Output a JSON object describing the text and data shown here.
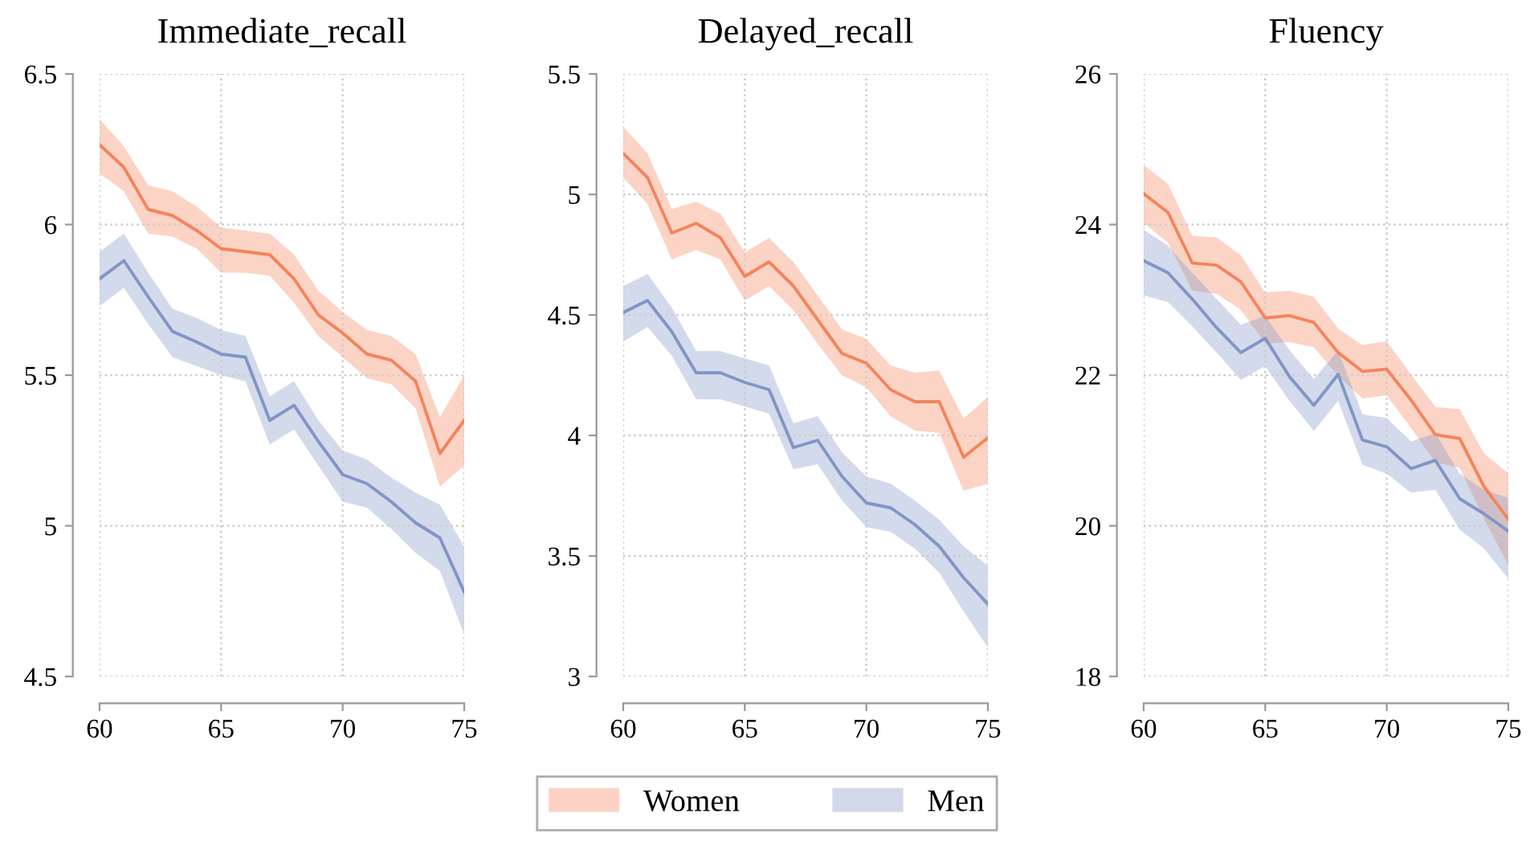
{
  "chart_data": [
    {
      "type": "line",
      "title": "Immediate_recall",
      "x": [
        60,
        61,
        62,
        63,
        64,
        65,
        66,
        67,
        68,
        69,
        70,
        71,
        72,
        73,
        74,
        75
      ],
      "xlim": [
        60,
        75
      ],
      "xticks": [
        60,
        65,
        70,
        75
      ],
      "ylim": [
        4.5,
        6.5
      ],
      "yticks": [
        4.5,
        5,
        5.5,
        6,
        6.5
      ],
      "grid": true,
      "legend": "bottom",
      "series": [
        {
          "name": "Women",
          "color": "#f4845c",
          "values": [
            6.265,
            6.19,
            6.05,
            6.03,
            5.98,
            5.92,
            5.91,
            5.9,
            5.82,
            5.7,
            5.64,
            5.57,
            5.55,
            5.48,
            5.24,
            5.35
          ],
          "lower": [
            6.17,
            6.11,
            5.97,
            5.96,
            5.92,
            5.84,
            5.84,
            5.83,
            5.74,
            5.63,
            5.56,
            5.49,
            5.47,
            5.39,
            5.13,
            5.2
          ],
          "upper": [
            6.35,
            6.26,
            6.13,
            6.11,
            6.06,
            5.99,
            5.98,
            5.97,
            5.9,
            5.78,
            5.71,
            5.65,
            5.63,
            5.57,
            5.36,
            5.5
          ]
        },
        {
          "name": "Men",
          "color": "#8295c6",
          "values": [
            5.82,
            5.88,
            5.76,
            5.645,
            5.61,
            5.57,
            5.56,
            5.35,
            5.4,
            5.28,
            5.17,
            5.14,
            5.08,
            5.01,
            4.96,
            4.78
          ],
          "lower": [
            5.73,
            5.79,
            5.67,
            5.56,
            5.53,
            5.5,
            5.48,
            5.27,
            5.32,
            5.2,
            5.08,
            5.06,
            4.99,
            4.91,
            4.85,
            4.64
          ],
          "upper": [
            5.91,
            5.97,
            5.84,
            5.72,
            5.69,
            5.65,
            5.63,
            5.43,
            5.48,
            5.35,
            5.25,
            5.22,
            5.16,
            5.11,
            5.07,
            4.93
          ]
        }
      ]
    },
    {
      "type": "line",
      "title": "Delayed_recall",
      "x": [
        60,
        61,
        62,
        63,
        64,
        65,
        66,
        67,
        68,
        69,
        70,
        71,
        72,
        73,
        74,
        75
      ],
      "xlim": [
        60,
        75
      ],
      "xticks": [
        60,
        65,
        70,
        75
      ],
      "ylim": [
        3,
        5.5
      ],
      "yticks": [
        3,
        3.5,
        4,
        4.5,
        5,
        5.5
      ],
      "grid": true,
      "series": [
        {
          "name": "Women",
          "color": "#f4845c",
          "values": [
            5.17,
            5.07,
            4.84,
            4.88,
            4.82,
            4.66,
            4.72,
            4.62,
            4.48,
            4.34,
            4.3,
            4.19,
            4.14,
            4.14,
            3.91,
            3.99
          ],
          "lower": [
            5.07,
            4.96,
            4.73,
            4.77,
            4.73,
            4.56,
            4.62,
            4.52,
            4.38,
            4.25,
            4.2,
            4.08,
            4.02,
            4.01,
            3.77,
            3.8
          ],
          "upper": [
            5.28,
            5.17,
            4.94,
            4.97,
            4.92,
            4.76,
            4.82,
            4.72,
            4.58,
            4.44,
            4.4,
            4.29,
            4.26,
            4.27,
            4.07,
            4.16
          ]
        },
        {
          "name": "Men",
          "color": "#8295c6",
          "values": [
            4.51,
            4.56,
            4.43,
            4.26,
            4.26,
            4.22,
            4.19,
            3.95,
            3.98,
            3.83,
            3.72,
            3.7,
            3.63,
            3.54,
            3.41,
            3.3
          ],
          "lower": [
            4.39,
            4.45,
            4.33,
            4.15,
            4.15,
            4.12,
            4.09,
            3.86,
            3.88,
            3.73,
            3.62,
            3.6,
            3.53,
            3.43,
            3.27,
            3.12
          ],
          "upper": [
            4.62,
            4.67,
            4.53,
            4.35,
            4.35,
            4.32,
            4.29,
            4.05,
            4.08,
            3.93,
            3.83,
            3.8,
            3.73,
            3.65,
            3.54,
            3.46
          ]
        }
      ]
    },
    {
      "type": "line",
      "title": "Fluency",
      "x": [
        60,
        61,
        62,
        63,
        64,
        65,
        66,
        67,
        68,
        69,
        70,
        71,
        72,
        73,
        74,
        75
      ],
      "xlim": [
        60,
        75
      ],
      "xticks": [
        60,
        65,
        70,
        75
      ],
      "ylim": [
        18,
        26
      ],
      "yticks": [
        18,
        20,
        22,
        24,
        26
      ],
      "grid": true,
      "series": [
        {
          "name": "Women",
          "color": "#f4845c",
          "values": [
            24.41,
            24.16,
            23.49,
            23.46,
            23.24,
            22.76,
            22.79,
            22.7,
            22.3,
            22.05,
            22.08,
            21.67,
            21.21,
            21.16,
            20.52,
            20.09
          ],
          "lower": [
            24.02,
            23.76,
            23.12,
            23.08,
            22.87,
            22.42,
            22.44,
            22.37,
            21.99,
            21.69,
            21.73,
            21.3,
            20.84,
            20.77,
            20.09,
            19.48
          ],
          "upper": [
            24.79,
            24.54,
            23.85,
            23.83,
            23.59,
            23.1,
            23.12,
            23.04,
            22.62,
            22.4,
            22.45,
            22.01,
            21.58,
            21.55,
            20.96,
            20.7
          ]
        },
        {
          "name": "Men",
          "color": "#8295c6",
          "values": [
            23.52,
            23.36,
            23.01,
            22.63,
            22.3,
            22.49,
            21.98,
            21.6,
            22.01,
            21.14,
            21.05,
            20.76,
            20.87,
            20.36,
            20.16,
            19.93
          ],
          "lower": [
            23.06,
            22.97,
            22.65,
            22.3,
            21.94,
            22.12,
            21.66,
            21.26,
            21.66,
            20.81,
            20.69,
            20.44,
            20.48,
            19.95,
            19.7,
            19.3
          ],
          "upper": [
            23.93,
            23.72,
            23.36,
            23.01,
            22.67,
            22.79,
            22.33,
            21.95,
            22.33,
            21.48,
            21.43,
            21.12,
            21.23,
            20.69,
            20.48,
            20.37
          ]
        }
      ]
    }
  ]
}
